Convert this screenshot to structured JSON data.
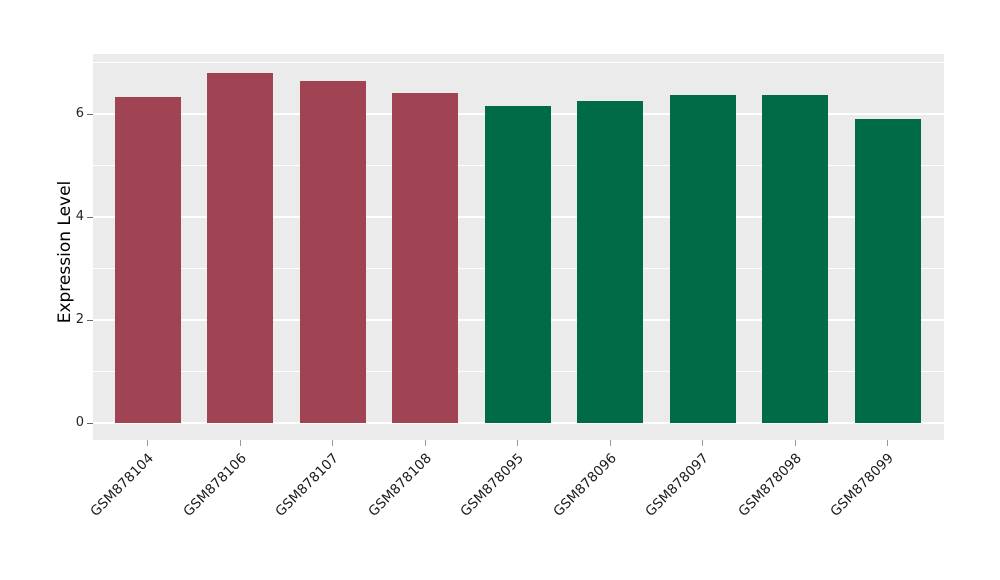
{
  "figure": {
    "background_color": "#FFFFFF",
    "panel_background_color": "#EBEBEB",
    "grid_color": "#FFFFFF"
  },
  "chart_data": {
    "type": "bar",
    "title": "",
    "xlabel": "",
    "ylabel": "Expression Level",
    "categories": [
      "GSM878104",
      "GSM878106",
      "GSM878107",
      "GSM878108",
      "GSM878095",
      "GSM878096",
      "GSM878097",
      "GSM878098",
      "GSM878099"
    ],
    "values": [
      6.34,
      6.8,
      6.65,
      6.42,
      6.16,
      6.27,
      6.37,
      6.37,
      5.91
    ],
    "bar_colors": [
      "#A04454",
      "#A04454",
      "#A04454",
      "#A04454",
      "#006B46",
      "#006B46",
      "#006B46",
      "#006B46",
      "#006B46"
    ],
    "groups": [
      {
        "color": "#A04454",
        "samples": [
          "GSM878104",
          "GSM878106",
          "GSM878107",
          "GSM878108"
        ]
      },
      {
        "color": "#006B46",
        "samples": [
          "GSM878095",
          "GSM878096",
          "GSM878097",
          "GSM878098",
          "GSM878099"
        ]
      }
    ],
    "ylim": [
      -0.33,
      7.18
    ],
    "yticks": [
      0,
      2,
      4,
      6
    ],
    "minor_yticks": [
      1,
      3,
      5,
      7
    ],
    "x_tick_label_rotation_deg": 45,
    "legend": "none",
    "grid": "white major and minor horizontal gridlines on gray panel"
  }
}
